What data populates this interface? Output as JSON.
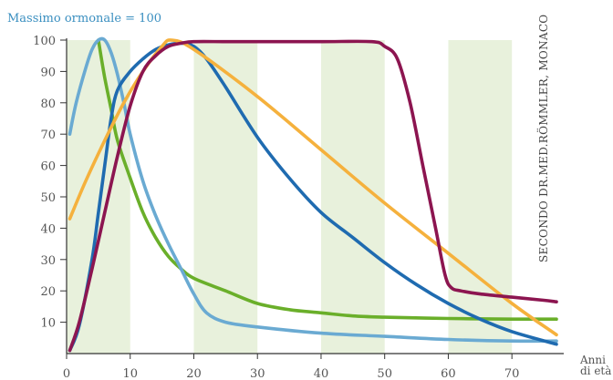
{
  "chart_data": {
    "type": "line",
    "title": "Massimo ormonale = 100",
    "xlabel": [
      "Anni",
      "di età"
    ],
    "source": "SECONDO DR.MED.RÖMMLER, MONACO",
    "xlim": [
      0,
      77
    ],
    "ylim": [
      0,
      100
    ],
    "x_ticks": [
      0,
      10,
      20,
      30,
      40,
      50,
      60,
      70
    ],
    "y_ticks": [
      10,
      20,
      30,
      40,
      50,
      60,
      70,
      80,
      90,
      100
    ],
    "bands": [
      [
        0,
        10
      ],
      [
        20,
        30
      ],
      [
        40,
        50
      ],
      [
        60,
        70
      ]
    ],
    "colors": {
      "band": "#e8f1dc",
      "axis": "#333333",
      "light_blue": "#6aaad2",
      "green": "#6aaf2a",
      "dark_blue": "#1f6bb0",
      "orange": "#f5b13d",
      "purple": "#8c1550"
    },
    "series": [
      {
        "color_key": "green",
        "points": [
          [
            5,
            100
          ],
          [
            6,
            88
          ],
          [
            7,
            78
          ],
          [
            8,
            68
          ],
          [
            10,
            56
          ],
          [
            12,
            45
          ],
          [
            14,
            37
          ],
          [
            16,
            31
          ],
          [
            18,
            27
          ],
          [
            20,
            24
          ],
          [
            25,
            20
          ],
          [
            30,
            16
          ],
          [
            35,
            14
          ],
          [
            40,
            13
          ],
          [
            45,
            12
          ],
          [
            50,
            11.6
          ],
          [
            60,
            11.2
          ],
          [
            70,
            11
          ],
          [
            77,
            11
          ]
        ]
      },
      {
        "color_key": "light_blue",
        "points": [
          [
            0.5,
            70
          ],
          [
            1.5,
            80
          ],
          [
            3,
            91
          ],
          [
            4,
            97
          ],
          [
            5,
            100
          ],
          [
            6,
            100
          ],
          [
            7,
            96
          ],
          [
            8,
            89
          ],
          [
            9,
            80
          ],
          [
            10,
            70
          ],
          [
            12,
            55
          ],
          [
            14,
            44
          ],
          [
            16,
            35
          ],
          [
            18,
            27
          ],
          [
            20,
            19
          ],
          [
            22,
            13
          ],
          [
            25,
            10
          ],
          [
            30,
            8.5
          ],
          [
            40,
            6.5
          ],
          [
            50,
            5.5
          ],
          [
            60,
            4.5
          ],
          [
            70,
            4
          ],
          [
            77,
            4
          ]
        ]
      },
      {
        "color_key": "dark_blue",
        "points": [
          [
            0.5,
            1
          ],
          [
            2,
            9
          ],
          [
            4,
            30
          ],
          [
            5,
            45
          ],
          [
            6,
            60
          ],
          [
            7,
            75
          ],
          [
            8,
            84
          ],
          [
            10,
            90
          ],
          [
            12,
            94
          ],
          [
            14,
            97
          ],
          [
            16,
            98.5
          ],
          [
            18,
            99
          ],
          [
            20,
            98
          ],
          [
            22,
            94
          ],
          [
            25,
            85
          ],
          [
            30,
            69
          ],
          [
            35,
            56
          ],
          [
            40,
            45
          ],
          [
            45,
            37
          ],
          [
            50,
            29
          ],
          [
            55,
            22
          ],
          [
            60,
            16
          ],
          [
            65,
            11
          ],
          [
            70,
            7
          ],
          [
            77,
            3
          ]
        ]
      },
      {
        "color_key": "orange",
        "points": [
          [
            0.5,
            43
          ],
          [
            3,
            55
          ],
          [
            6,
            68
          ],
          [
            9,
            80
          ],
          [
            12,
            90
          ],
          [
            15,
            98
          ],
          [
            16.5,
            100
          ],
          [
            20,
            97
          ],
          [
            30,
            82
          ],
          [
            40,
            65
          ],
          [
            50,
            48
          ],
          [
            60,
            32
          ],
          [
            70,
            16
          ],
          [
            77,
            6
          ]
        ]
      },
      {
        "color_key": "purple",
        "points": [
          [
            0.5,
            1
          ],
          [
            2,
            10
          ],
          [
            4,
            27
          ],
          [
            6,
            45
          ],
          [
            8,
            63
          ],
          [
            10,
            79
          ],
          [
            12,
            90
          ],
          [
            14,
            95
          ],
          [
            16,
            98
          ],
          [
            18,
            99
          ],
          [
            20,
            99.5
          ],
          [
            25,
            99.5
          ],
          [
            30,
            99.5
          ],
          [
            40,
            99.5
          ],
          [
            48,
            99.5
          ],
          [
            50,
            98
          ],
          [
            52,
            94
          ],
          [
            54,
            80
          ],
          [
            56,
            60
          ],
          [
            58,
            40
          ],
          [
            59.5,
            25
          ],
          [
            60.5,
            21
          ],
          [
            62,
            20
          ],
          [
            65,
            19
          ],
          [
            70,
            18
          ],
          [
            75,
            17
          ],
          [
            77,
            16.5
          ]
        ]
      }
    ]
  }
}
